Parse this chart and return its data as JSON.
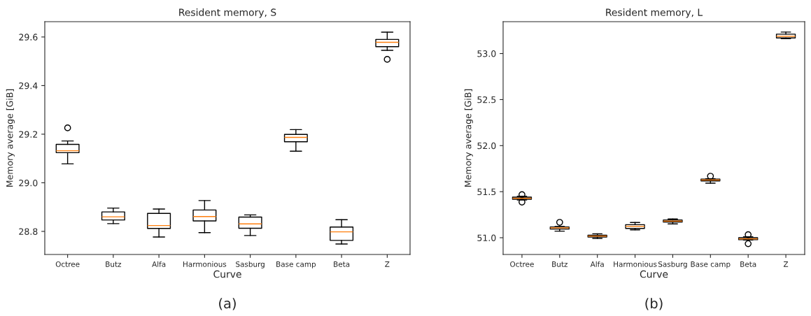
{
  "chart_data": [
    {
      "type": "box",
      "title": "Resident memory, S",
      "xlabel": "Curve",
      "ylabel": "Memory average [GiB]",
      "annotations": [
        "(a)"
      ],
      "categories": [
        "Octree",
        "Butz",
        "Alfa",
        "Harmonious",
        "Sasburg",
        "Base camp",
        "Beta",
        "Z"
      ],
      "ylim": [
        28.705,
        29.663
      ],
      "yticks": [
        {
          "value": 28.8,
          "label": "28.8"
        },
        {
          "value": 29.0,
          "label": "29.0"
        },
        {
          "value": 29.2,
          "label": "29.2"
        },
        {
          "value": 29.4,
          "label": "29.4"
        },
        {
          "value": 29.6,
          "label": "29.6"
        }
      ],
      "boxes": [
        {
          "low": 29.078,
          "q1": 29.124,
          "median": 29.132,
          "q3": 29.158,
          "high": 29.172,
          "outliers": [
            29.226
          ]
        },
        {
          "low": 28.832,
          "q1": 28.847,
          "median": 28.86,
          "q3": 28.88,
          "high": 28.896
        },
        {
          "low": 28.777,
          "q1": 28.812,
          "median": 28.824,
          "q3": 28.874,
          "high": 28.892
        },
        {
          "low": 28.795,
          "q1": 28.843,
          "median": 28.861,
          "q3": 28.888,
          "high": 28.927
        },
        {
          "low": 28.783,
          "q1": 28.813,
          "median": 28.831,
          "q3": 28.859,
          "high": 28.868
        },
        {
          "low": 29.13,
          "q1": 29.169,
          "median": 29.187,
          "q3": 29.199,
          "high": 29.219
        },
        {
          "low": 28.748,
          "q1": 28.763,
          "median": 28.798,
          "q3": 28.818,
          "high": 28.848
        },
        {
          "low": 29.545,
          "q1": 29.56,
          "median": 29.578,
          "q3": 29.59,
          "high": 29.62,
          "outliers": [
            29.508
          ]
        }
      ],
      "grid": false
    },
    {
      "type": "box",
      "title": "Resident memory, L",
      "xlabel": "Curve",
      "ylabel": "Memory average [GiB]",
      "annotations": [
        "(b)"
      ],
      "categories": [
        "Octree",
        "Butz",
        "Alfa",
        "Harmonious",
        "Sasburg",
        "Base camp",
        "Beta",
        "Z"
      ],
      "ylim": [
        50.818,
        53.346
      ],
      "yticks": [
        {
          "value": 51.0,
          "label": "51.0"
        },
        {
          "value": 51.5,
          "label": "51.5"
        },
        {
          "value": 52.0,
          "label": "52.0"
        },
        {
          "value": 52.5,
          "label": "52.5"
        },
        {
          "value": 53.0,
          "label": "53.0"
        }
      ],
      "boxes": [
        {
          "low": 51.41,
          "q1": 51.418,
          "median": 51.428,
          "q3": 51.44,
          "high": 51.45,
          "outliers": [
            51.468,
            51.387
          ]
        },
        {
          "low": 51.071,
          "q1": 51.094,
          "median": 51.107,
          "q3": 51.117,
          "high": 51.122,
          "outliers": [
            51.167
          ]
        },
        {
          "low": 50.993,
          "q1": 51.008,
          "median": 51.018,
          "q3": 51.028,
          "high": 51.043
        },
        {
          "low": 51.086,
          "q1": 51.101,
          "median": 51.124,
          "q3": 51.142,
          "high": 51.165
        },
        {
          "low": 51.15,
          "q1": 51.17,
          "median": 51.18,
          "q3": 51.192,
          "high": 51.203
        },
        {
          "low": 51.592,
          "q1": 51.617,
          "median": 51.627,
          "q3": 51.637,
          "high": 51.64,
          "outliers": [
            51.668
          ]
        },
        {
          "low": 50.975,
          "q1": 50.978,
          "median": 50.988,
          "q3": 51.0,
          "high": 51.01,
          "outliers": [
            51.033,
            50.935
          ]
        },
        {
          "low": 53.162,
          "q1": 53.169,
          "median": 53.187,
          "q3": 53.21,
          "high": 53.233
        }
      ],
      "grid": false
    }
  ]
}
